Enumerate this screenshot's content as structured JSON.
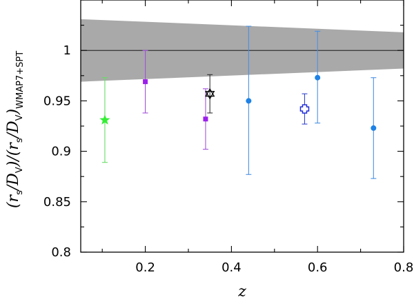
{
  "chart_data": {
    "type": "scatter",
    "xlabel": "z",
    "ylabel_parts": {
      "lead": "(r",
      "s1": "s",
      "mid1": "/D",
      "v1": "V",
      "mid2": ")/(r",
      "s2": "s",
      "mid3": "/D",
      "v2": "V",
      "close": ")",
      "ref": "WMAP7+SPT"
    },
    "xlim": [
      0.05,
      0.8
    ],
    "ylim": [
      0.8,
      1.05
    ],
    "x_ticks": [
      0.2,
      0.4,
      0.6,
      0.8
    ],
    "x_tick_labels": [
      "0.2",
      "0.4",
      "0.6",
      "0.8"
    ],
    "y_ticks": [
      0.8,
      0.85,
      0.9,
      0.95,
      1.0
    ],
    "y_tick_labels": [
      "0.8",
      "0.85",
      "0.9",
      "0.95",
      "1"
    ],
    "reference_line": 1.0,
    "band": {
      "color": "#a9a9a9",
      "upper": [
        [
          0.05,
          1.031
        ],
        [
          0.8,
          1.018
        ]
      ],
      "lower": [
        [
          0.05,
          0.969
        ],
        [
          0.8,
          0.982
        ]
      ]
    },
    "series": [
      {
        "marker": "star",
        "color": "#33ee33",
        "errcolor": "#66dd66",
        "points": [
          {
            "x": 0.106,
            "y": 0.931,
            "lo": 0.889,
            "hi": 0.973
          }
        ]
      },
      {
        "marker": "square",
        "color": "#9b1fea",
        "errcolor": "#a050d8",
        "points": [
          {
            "x": 0.2,
            "y": 0.969,
            "lo": 0.938,
            "hi": 1.0
          },
          {
            "x": 0.34,
            "y": 0.932,
            "lo": 0.902,
            "hi": 0.962
          }
        ]
      },
      {
        "marker": "hexagram",
        "color": "#000000",
        "errcolor": "#333333",
        "points": [
          {
            "x": 0.35,
            "y": 0.957,
            "lo": 0.938,
            "hi": 0.976
          }
        ]
      },
      {
        "marker": "circle",
        "color": "#1e82e6",
        "errcolor": "#4a90e2",
        "points": [
          {
            "x": 0.44,
            "y": 0.95,
            "lo": 0.877,
            "hi": 1.024
          },
          {
            "x": 0.6,
            "y": 0.973,
            "lo": 0.928,
            "hi": 1.019
          },
          {
            "x": 0.73,
            "y": 0.923,
            "lo": 0.873,
            "hi": 0.973
          }
        ]
      },
      {
        "marker": "cross",
        "color": "#1e2ad8",
        "errcolor": "#3344cc",
        "points": [
          {
            "x": 0.57,
            "y": 0.942,
            "lo": 0.927,
            "hi": 0.957
          }
        ]
      }
    ]
  }
}
